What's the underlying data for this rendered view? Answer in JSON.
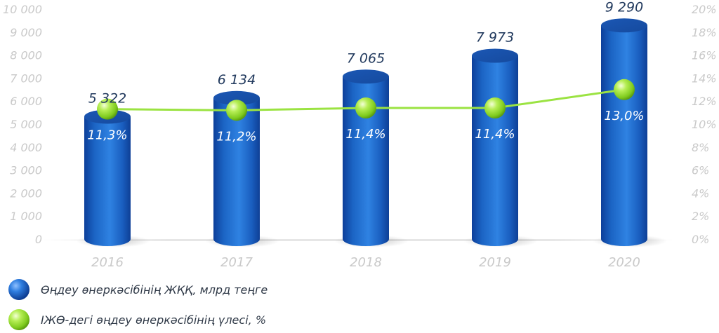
{
  "chart_data": {
    "type": "bar",
    "categories": [
      "2016",
      "2017",
      "2018",
      "2019",
      "2020"
    ],
    "series": [
      {
        "name": "Өңдеу өнеркәсібінің ЖҚҚ, млрд теңге",
        "type": "bar",
        "axis": "left",
        "values": [
          5322,
          6134,
          7065,
          7973,
          9290
        ],
        "labels": [
          "5 322",
          "6 134",
          "7 065",
          "7 973",
          "9 290"
        ]
      },
      {
        "name": "ІЖӨ-дегі өңдеу өнеркәсібінің үлесі, %",
        "type": "line",
        "axis": "right",
        "values": [
          11.3,
          11.2,
          11.4,
          11.4,
          13.0
        ],
        "labels": [
          "11,3%",
          "11,2%",
          "11,4%",
          "11,4%",
          "13,0%"
        ]
      }
    ],
    "y_left": {
      "ylim": [
        0,
        10000
      ],
      "ticks": [
        "0",
        "1 000",
        "2 000",
        "3 000",
        "4 000",
        "5 000",
        "6 000",
        "7 000",
        "8 000",
        "9 000",
        "10 000"
      ]
    },
    "y_right": {
      "ylim": [
        0,
        20
      ],
      "ticks": [
        "0%",
        "2%",
        "4%",
        "6%",
        "8%",
        "10%",
        "12%",
        "14%",
        "16%",
        "18%",
        "20%"
      ]
    },
    "grid": false,
    "legend_position": "bottom-left",
    "colors": {
      "bar": "#1f6fcf",
      "line": "#9be342",
      "axis_text": "#c9c9c9",
      "label_text": "#223a5e"
    }
  },
  "legend": [
    {
      "label": "Өңдеу өнеркәсібінің ЖҚҚ, млрд теңге",
      "marker": "blue-sphere"
    },
    {
      "label": "ІЖӨ-дегі өңдеу өнеркәсібінің үлесі, %",
      "marker": "green-sphere"
    }
  ]
}
